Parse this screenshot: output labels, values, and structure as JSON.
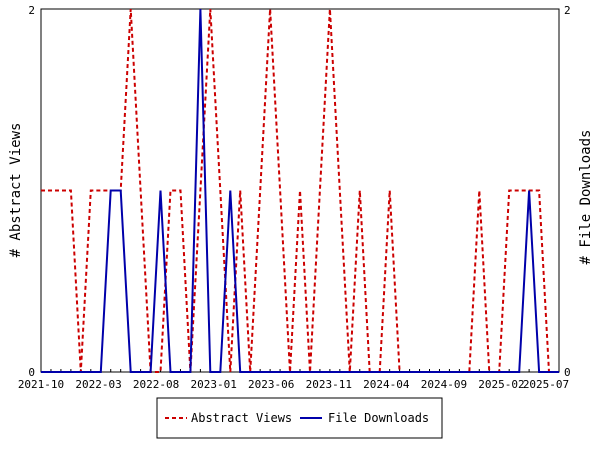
{
  "chart_data": {
    "type": "line",
    "title": "",
    "y_left_label": "# Abstract Views",
    "y_right_label": "# File Downloads",
    "x_tick_labels": [
      "2021-10",
      "2022-03",
      "2022-08",
      "2023-01",
      "2023-06",
      "2023-11",
      "2024-04",
      "2024-09",
      "2025-02",
      "2025-07"
    ],
    "y_left_ticks": [
      "0",
      "2"
    ],
    "y_right_ticks": [
      "0",
      "2"
    ],
    "ylim": [
      0,
      2
    ],
    "legend_position": "bottom",
    "series": [
      {
        "name": "Abstract Views",
        "color": "#cc0000",
        "style": "dashed",
        "axis": "left",
        "values": [
          1,
          1,
          1,
          1,
          0,
          1,
          1,
          1,
          1,
          2,
          1,
          0,
          0,
          1,
          1,
          0,
          1,
          2,
          1,
          0,
          1,
          0,
          1,
          2,
          1,
          0,
          1,
          0,
          1,
          2,
          1,
          0,
          1,
          0,
          0,
          1,
          0,
          0,
          0,
          0,
          0,
          0,
          0,
          0,
          1,
          0,
          0,
          1,
          1,
          1,
          1,
          0,
          0
        ]
      },
      {
        "name": "File Downloads",
        "color": "#0000aa",
        "style": "solid",
        "axis": "right",
        "values": [
          0,
          0,
          0,
          0,
          0,
          0,
          0,
          1,
          1,
          0,
          0,
          0,
          1,
          0,
          0,
          0,
          2,
          0,
          0,
          1,
          0,
          0,
          0,
          0,
          0,
          0,
          0,
          0,
          0,
          0,
          0,
          0,
          0,
          0,
          0,
          0,
          0,
          0,
          0,
          0,
          0,
          0,
          0,
          0,
          0,
          0,
          0,
          0,
          0,
          1,
          0,
          0,
          0
        ]
      }
    ]
  }
}
